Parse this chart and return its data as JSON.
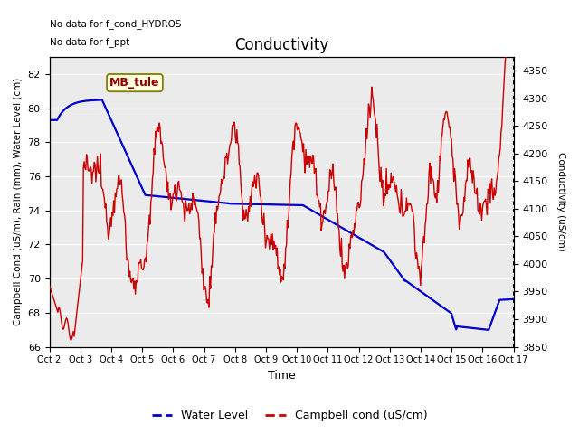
{
  "title": "Conductivity",
  "xlabel": "Time",
  "ylabel_left": "Campbell Cond (uS/m), Rain (mm), Water Level (cm)",
  "ylabel_right": "Conductivity (uS/cm)",
  "annotation1": "No data for f_cond_HYDROS",
  "annotation2": "No data for f_ppt",
  "station_label": "MB_tule",
  "ylim_left": [
    66,
    83
  ],
  "ylim_right": [
    3850,
    4375
  ],
  "yticks_left": [
    66,
    68,
    70,
    72,
    74,
    76,
    78,
    80,
    82
  ],
  "yticks_right": [
    3850,
    3900,
    3950,
    4000,
    4050,
    4100,
    4150,
    4200,
    4250,
    4300,
    4350
  ],
  "xtick_labels": [
    "Oct 2",
    "Oct 3",
    "Oct 4",
    "Oct 5",
    "Oct 6",
    "Oct 7",
    "Oct 8",
    "Oct 9",
    "Oct 10",
    "Oct 11",
    "Oct 12",
    "Oct 13",
    "Oct 14",
    "Oct 15",
    "Oct 16",
    "Oct 17"
  ],
  "n_days": 15,
  "plot_bg_color": "#ebebeb",
  "water_level_color": "#0000cc",
  "campbell_cond_color": "#cc0000",
  "legend_water_label": "Water Level",
  "legend_campbell_label": "Campbell cond (uS/cm)"
}
